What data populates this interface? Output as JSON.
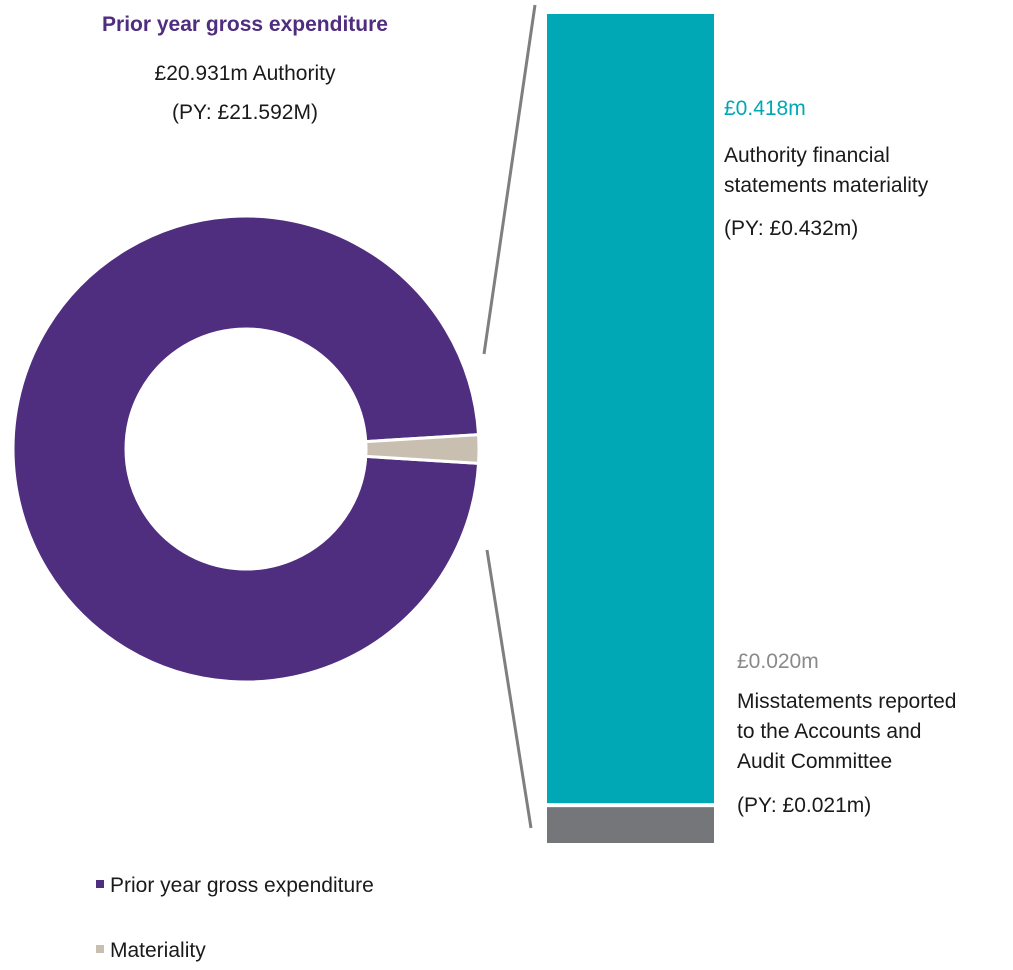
{
  "colors": {
    "expenditure": "#4f2d7f",
    "materiality": "#c9bfb1",
    "materiality_bar": "#00a7b5",
    "misstatements_bar": "#757679",
    "connector": "#7f7f7f"
  },
  "header": {
    "title": "Prior year gross expenditure",
    "value_line": "£20.931m Authority",
    "py_line": "(PY: £21.592M)"
  },
  "materiality_label": {
    "value": "£0.418m",
    "desc_line1": "Authority financial",
    "desc_line2": "statements materiality",
    "py": "(PY: £0.432m)"
  },
  "misstatement_label": {
    "value": "£0.020m",
    "desc_line1": "Misstatements reported",
    "desc_line2": "to the Accounts and",
    "desc_line3": "Audit Committee",
    "py": "(PY: £0.021m)"
  },
  "legend": [
    {
      "label": "Prior year gross expenditure",
      "color": "#4f2d7f"
    },
    {
      "label": "Materiality",
      "color": "#c9bfb1"
    }
  ],
  "chart_data": [
    {
      "type": "pie",
      "donut": true,
      "categories": [
        "Prior year gross expenditure",
        "Materiality"
      ],
      "values": [
        20.931,
        0.418
      ],
      "units": "£m"
    },
    {
      "type": "bar",
      "stacked": true,
      "categories": [
        "Authority financial statements materiality",
        "Misstatements reported to the Accounts and Audit Committee"
      ],
      "values": [
        0.418,
        0.02
      ],
      "units": "£m"
    }
  ]
}
